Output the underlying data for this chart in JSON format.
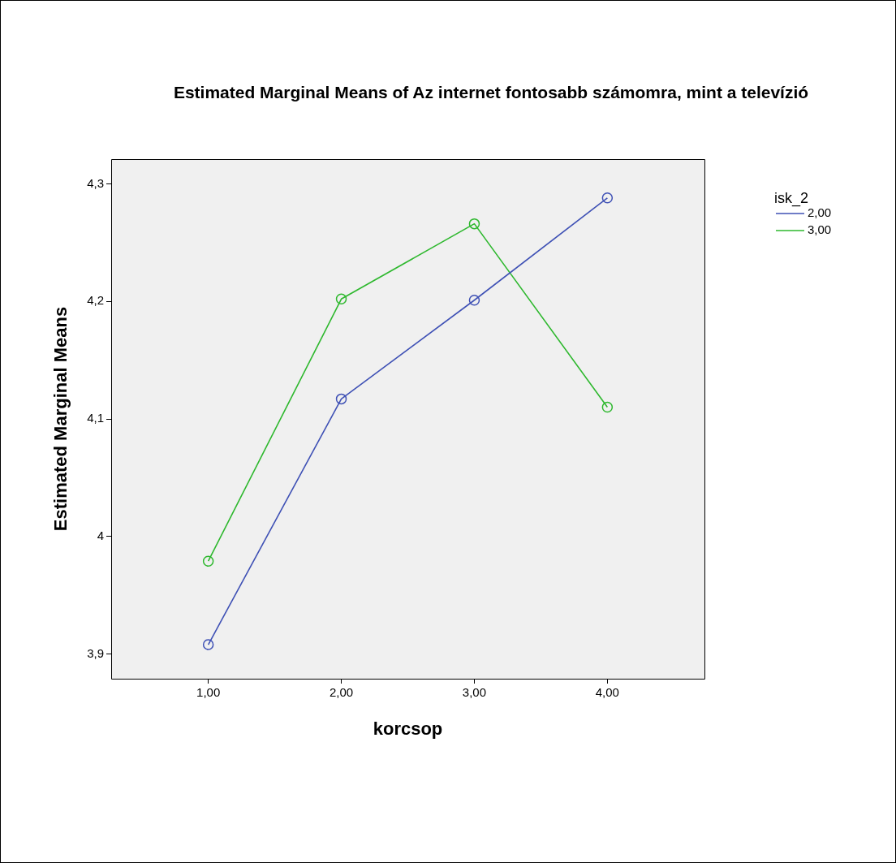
{
  "chart_data": {
    "type": "line",
    "title": "Estimated Marginal Means of Az internet fontosabb számomra, mint a televízió",
    "xlabel": "korcsop",
    "ylabel": "Estimated Marginal Means",
    "legend_title": "isk_2",
    "categories": [
      "1,00",
      "2,00",
      "3,00",
      "4,00"
    ],
    "series": [
      {
        "name": "2,00",
        "color": "#3f51b5",
        "values": [
          3.908,
          4.117,
          4.201,
          4.288
        ]
      },
      {
        "name": "3,00",
        "color": "#2eb82e",
        "values": [
          3.979,
          4.202,
          4.266,
          4.11
        ]
      }
    ],
    "ylim": [
      3.879,
      4.321
    ],
    "yticks": [
      {
        "value": 3.9,
        "label": "3,9"
      },
      4,
      {
        "value": 4.1,
        "label": "4,1"
      },
      {
        "value": 4.2,
        "label": "4,2"
      },
      {
        "value": 4.3,
        "label": "4,3"
      }
    ],
    "grid": false,
    "legend": "top right",
    "marker": "circle",
    "line_style": "solid"
  }
}
